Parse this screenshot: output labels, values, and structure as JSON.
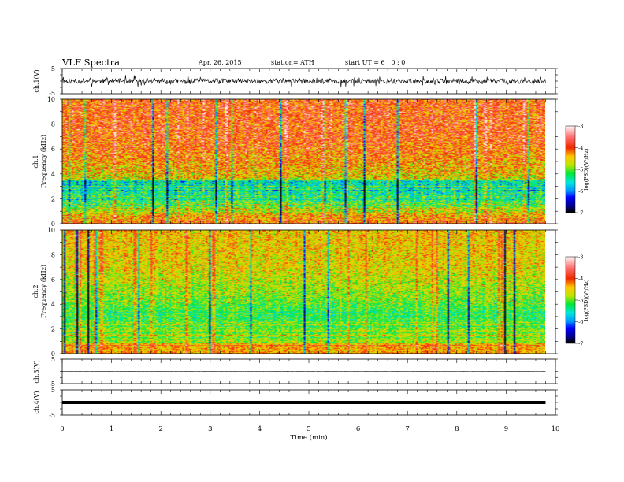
{
  "header": {
    "title": "VLF  Spectra",
    "date": "Apr. 26,  2015",
    "station": "station= ATH",
    "start": "start  UT  =   6  : 0  : 0"
  },
  "chart_data": [
    {
      "type": "line",
      "name": "ch1-waveform",
      "ylabel": "ch.1(V)",
      "ylim": [
        -5,
        5
      ],
      "yticks": [
        -5,
        5
      ],
      "xlim": [
        0,
        10
      ],
      "data_end_min": 9.8,
      "mean": 0,
      "noise_amplitude": 1.0,
      "spike_amplitude": 2.0
    },
    {
      "type": "heatmap",
      "name": "ch1-spectrogram",
      "ylabel": "Frequency  (kHz)",
      "channel_label": "ch.1",
      "ylim": [
        0,
        10
      ],
      "yticks": [
        0,
        2,
        4,
        6,
        8,
        10
      ],
      "xlim": [
        0,
        10
      ],
      "data_end_min": 9.8,
      "colorbar": {
        "label": "log(PSD)(V²/Hz)",
        "range": [
          -7,
          -3
        ],
        "ticks": [
          -3,
          -4,
          -5,
          -6,
          -7
        ]
      },
      "band_profile_log_psd": [
        {
          "freq_khz": 0.0,
          "value": -4.6
        },
        {
          "freq_khz": 1.0,
          "value": -4.8
        },
        {
          "freq_khz": 2.0,
          "value": -5.3
        },
        {
          "freq_khz": 3.4,
          "value": -5.6
        },
        {
          "freq_khz": 3.6,
          "value": -4.6
        },
        {
          "freq_khz": 5.0,
          "value": -4.3
        },
        {
          "freq_khz": 7.0,
          "value": -4.0
        },
        {
          "freq_khz": 10.0,
          "value": -4.0
        }
      ]
    },
    {
      "type": "heatmap",
      "name": "ch2-spectrogram",
      "ylabel": "Frequency  (kHz)",
      "channel_label": "ch.2",
      "ylim": [
        0,
        10
      ],
      "yticks": [
        0,
        2,
        4,
        6,
        8,
        10
      ],
      "xlim": [
        0,
        10
      ],
      "data_end_min": 9.8,
      "colorbar": {
        "label": "log(PSD)(V²/Hz)",
        "range": [
          -7,
          -3
        ],
        "ticks": [
          -3,
          -4,
          -5,
          -6,
          -7
        ]
      },
      "band_profile_log_psd": [
        {
          "freq_khz": 0.0,
          "value": -4.7
        },
        {
          "freq_khz": 1.5,
          "value": -4.9
        },
        {
          "freq_khz": 3.0,
          "value": -5.2
        },
        {
          "freq_khz": 5.0,
          "value": -4.9
        },
        {
          "freq_khz": 7.0,
          "value": -4.6
        },
        {
          "freq_khz": 10.0,
          "value": -4.5
        }
      ]
    },
    {
      "type": "line",
      "name": "ch3-waveform",
      "ylabel": "ch.3(V)",
      "ylim": [
        -5,
        5
      ],
      "yticks": [
        -5,
        5
      ],
      "xlim": [
        0,
        10
      ],
      "data_end_min": 9.8,
      "mean": 0,
      "noise_amplitude": 0.05
    },
    {
      "type": "line",
      "name": "ch4-waveform",
      "ylabel": "ch.4(V)",
      "ylim": [
        -5,
        5
      ],
      "yticks": [
        -5,
        5
      ],
      "xlim": [
        0,
        10
      ],
      "data_end_min": 9.8,
      "mean": 0,
      "noise_amplitude": 0.3
    }
  ],
  "xaxis": {
    "label": "Time  (min)",
    "ticks": [
      0,
      1,
      2,
      3,
      4,
      5,
      6,
      7,
      8,
      9,
      10
    ]
  }
}
